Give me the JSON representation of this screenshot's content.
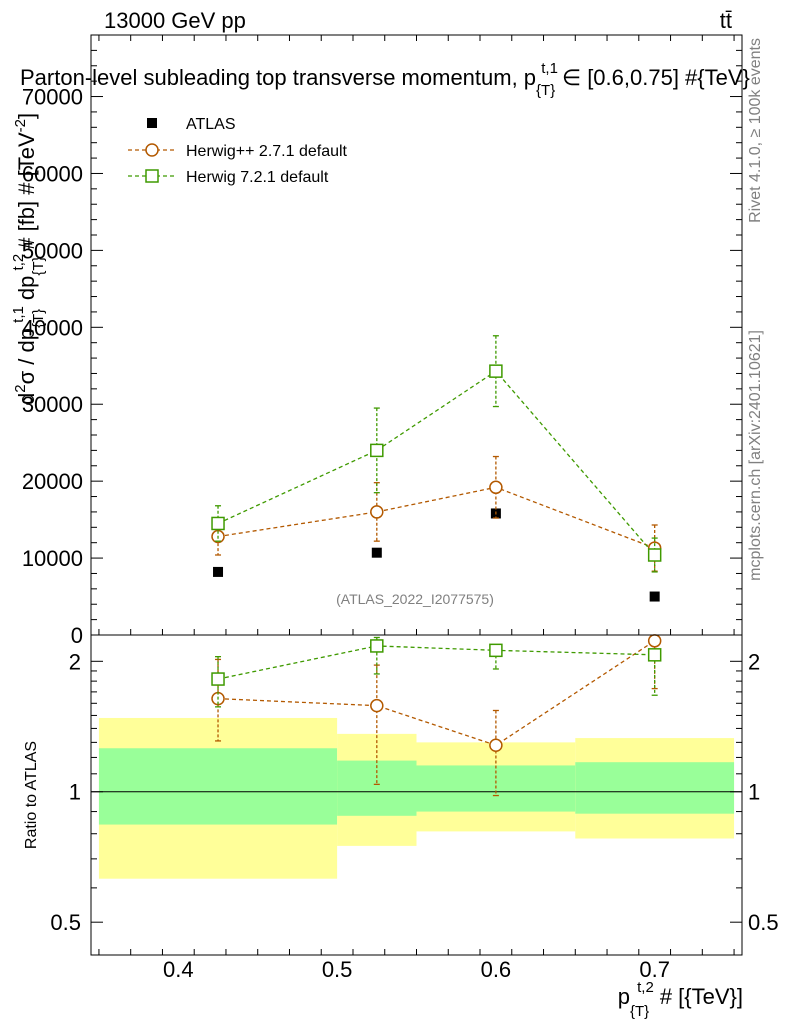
{
  "header": {
    "beam": "13000 GeV pp",
    "process": "tt̄"
  },
  "side": {
    "rivet": "Rivet 4.1.0, ≥ 100k events",
    "mcplots": "mcplots.cern.ch [arXiv:2401.10621]"
  },
  "chart_data": [
    {
      "type": "line",
      "panel": "main",
      "title": "Parton-level subleading top transverse momentum, p_{T}^{t,1} ∈ [0.6,0.75] #{TeV}",
      "title_parts": {
        "prefix": "Parton-level subleading top transverse momentum, p",
        "sub": "{T}",
        "sup": "t,1",
        "suffix": "∈ [0.6,0.75] #{TeV}"
      },
      "ylabel": "d²σ / dp_{T}^{t,1} dp_{T}^{t,2} # [fb] # [TeV^-2]",
      "ylabel_parts": {
        "a": "d",
        "a_sup": "2",
        "b": "σ / dp",
        "b_sub": "{T}",
        "b_sup": "t,1",
        "c": "dp",
        "c_sub": "{T}",
        "c_sup": "t,2",
        "d": "# [fb] # [TeV",
        "d_sup": "-2",
        "e": "]"
      },
      "xlim": [
        0.345,
        0.755
      ],
      "ylim": [
        0,
        78000
      ],
      "y_ticks": [
        0,
        10000,
        20000,
        30000,
        40000,
        50000,
        60000,
        70000
      ],
      "watermark": "(ATLAS_2022_I2077575)",
      "legend_position": "top-left",
      "legend": [
        "ATLAS",
        "Herwig++ 2.7.1 default",
        "Herwig 7.2.1 default"
      ],
      "x": [
        0.425,
        0.525,
        0.6,
        0.7
      ],
      "series": [
        {
          "name": "ATLAS",
          "color": "#000000",
          "marker": "filled-square",
          "values": [
            8200,
            10700,
            15800,
            5000
          ],
          "err": [
            300,
            400,
            500,
            200
          ]
        },
        {
          "name": "Herwig++ 2.7.1 default",
          "color": "#b35900",
          "marker": "open-circle",
          "values": [
            12800,
            16000,
            19200,
            11300
          ],
          "err": [
            2400,
            3800,
            4000,
            3000
          ]
        },
        {
          "name": "Herwig 7.2.1 default",
          "color": "#3f9a00",
          "marker": "open-square",
          "values": [
            14500,
            24000,
            34300,
            10400
          ],
          "err": [
            2300,
            5500,
            4600,
            2200
          ]
        }
      ]
    },
    {
      "type": "line",
      "panel": "ratio",
      "ylabel": "Ratio to ATLAS",
      "xlabel": "p_{T}^{t,2} # [{TeV}]",
      "xlabel_parts": {
        "a": "p",
        "sub": "{T}",
        "sup": "t,2",
        "b": "# [{TeV}]"
      },
      "xlim": [
        0.345,
        0.755
      ],
      "ylim": [
        0.42,
        2.3
      ],
      "y_scale": "log",
      "y_ticks": [
        0.5,
        1,
        2
      ],
      "y_tick_labels": [
        "0.5",
        "1",
        "2"
      ],
      "x_ticks": [
        0.4,
        0.5,
        0.6,
        0.7
      ],
      "x_tick_labels": [
        "0.4",
        "0.5",
        "0.6",
        "0.7"
      ],
      "bands": [
        {
          "xlo": 0.35,
          "xhi": 0.5,
          "stat": [
            0.84,
            1.26
          ],
          "total": [
            0.63,
            1.48
          ]
        },
        {
          "xlo": 0.5,
          "xhi": 0.55,
          "stat": [
            0.88,
            1.18
          ],
          "total": [
            0.75,
            1.36
          ]
        },
        {
          "xlo": 0.55,
          "xhi": 0.65,
          "stat": [
            0.9,
            1.15
          ],
          "total": [
            0.81,
            1.3
          ]
        },
        {
          "xlo": 0.65,
          "xhi": 0.75,
          "stat": [
            0.89,
            1.17
          ],
          "total": [
            0.78,
            1.33
          ]
        }
      ],
      "band_colors": {
        "stat": "#99ff99",
        "total": "#ffff99"
      },
      "x": [
        0.425,
        0.525,
        0.6,
        0.7
      ],
      "series": [
        {
          "name": "Herwig++ 2.7.1 default",
          "color": "#b35900",
          "marker": "open-circle",
          "values": [
            1.64,
            1.58,
            1.28,
            2.23
          ],
          "err_lo": [
            0.33,
            0.54,
            0.3,
            0.5
          ],
          "err_hi": [
            0.38,
            0.38,
            0.26,
            0.0
          ]
        },
        {
          "name": "Herwig 7.2.1 default",
          "color": "#3f9a00",
          "marker": "open-square",
          "values": [
            1.82,
            2.17,
            2.12,
            2.07
          ],
          "err_lo": [
            0.25,
            0.3,
            0.2,
            0.4
          ],
          "err_hi": [
            0.23,
            0.1,
            0.0,
            0.0
          ]
        }
      ]
    }
  ]
}
